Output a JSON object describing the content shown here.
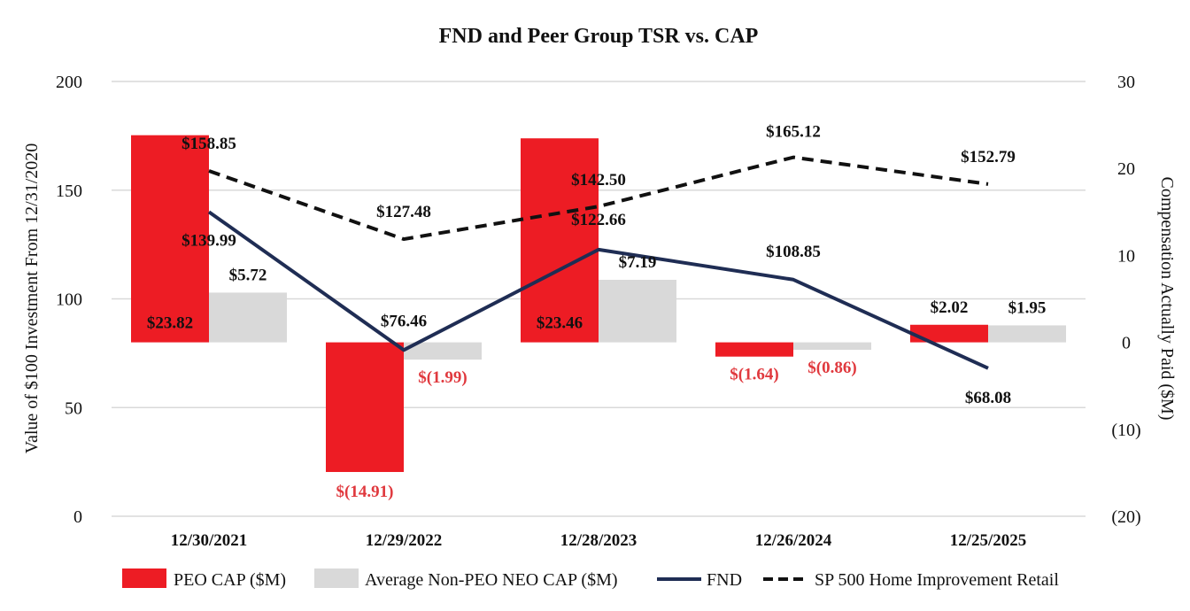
{
  "chart_data": {
    "type": "bar+line",
    "title": "FND and Peer Group TSR vs. CAP",
    "categories": [
      "12/30/2021",
      "12/29/2022",
      "12/28/2023",
      "12/26/2024",
      "12/25/2025"
    ],
    "left_axis": {
      "label": "Value of $100 Investment From 12/31/2020",
      "ylim": [
        0,
        200
      ],
      "ticks": [
        0,
        50,
        100,
        150,
        200
      ],
      "tick_labels": [
        "0",
        "50",
        "100",
        "150",
        "200"
      ]
    },
    "right_axis": {
      "label": "Compensation Actually Paid ($M)",
      "ylim": [
        -20,
        30
      ],
      "ticks": [
        -20,
        -10,
        0,
        10,
        20,
        30
      ],
      "tick_labels": [
        "(20)",
        "(10)",
        "0",
        "10",
        "20",
        "30"
      ]
    },
    "bar_series": [
      {
        "name": "PEO CAP ($M)",
        "color": "#ed1c24",
        "axis": "right",
        "values": [
          23.82,
          -14.91,
          23.46,
          -1.64,
          2.02
        ],
        "labels": [
          "$23.82",
          "$(14.91)",
          "$23.46",
          "$(1.64)",
          "$2.02"
        ]
      },
      {
        "name": "Average Non-PEO NEO CAP ($M)",
        "color": "#d9d9d9",
        "axis": "right",
        "values": [
          5.72,
          -1.99,
          7.19,
          -0.86,
          1.95
        ],
        "labels": [
          "$5.72",
          "$(1.99)",
          "$7.19",
          "$(0.86)",
          "$1.95"
        ]
      }
    ],
    "line_series": [
      {
        "name": "FND",
        "color": "#1f2d54",
        "axis": "left",
        "style": "solid",
        "values": [
          139.99,
          76.46,
          122.66,
          108.85,
          68.08
        ],
        "labels": [
          "$139.99",
          "$76.46",
          "$122.66",
          "$108.85",
          "$68.08"
        ]
      },
      {
        "name": "SP 500 Home Improvement Retail",
        "color": "#111111",
        "axis": "left",
        "style": "dashed",
        "values": [
          158.85,
          127.48,
          142.5,
          165.12,
          152.79
        ],
        "labels": [
          "$158.85",
          "$127.48",
          "$142.50",
          "$165.12",
          "$152.79"
        ]
      }
    ],
    "negative_label_color": "#e0393e",
    "grid": true,
    "legend_position": "bottom"
  }
}
